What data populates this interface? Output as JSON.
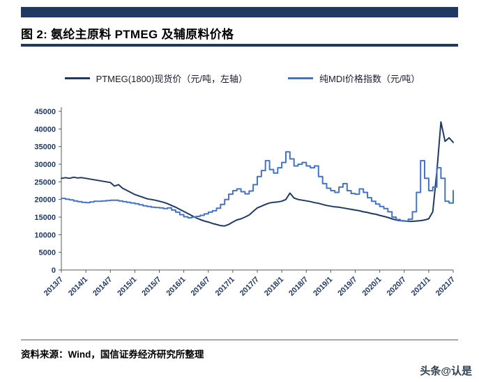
{
  "header": {
    "title": "图 2:  氨纶主原料 PTMEG 及辅原料价格"
  },
  "legend": [
    {
      "label": "PTMEG(1800)现货价（元/吨，左轴）",
      "color": "#1f3864"
    },
    {
      "label": "纯MDI价格指数（元/吨）",
      "color": "#4472c4"
    }
  ],
  "footer": {
    "source": "资料来源：Wind，国信证券经济研究所整理",
    "watermark": "头条@认是"
  },
  "chart_data": {
    "type": "line",
    "title": "氨纶主原料 PTMEG 及辅原料价格",
    "xlabel": "",
    "ylabel": "元/吨",
    "ylim": [
      0,
      45000
    ],
    "ytick_step": 5000,
    "grid": false,
    "legend_position": "top",
    "x_tick_interval": 6,
    "x_tick_labels": [
      "2013/7",
      "2014/1",
      "2014/7",
      "2015/1",
      "2015/7",
      "2016/1",
      "2016/7",
      "2017/1",
      "2017/7",
      "2018/1",
      "2018/7",
      "2019/1",
      "2019/7",
      "2020/1",
      "2020/7",
      "2021/1",
      "2021/7"
    ],
    "series": [
      {
        "name": "PTMEG(1800)现货价（元/吨，左轴）",
        "color": "#1f3864",
        "step": false,
        "values": [
          26000,
          26200,
          26000,
          26300,
          26100,
          26200,
          26000,
          25800,
          25600,
          25400,
          25200,
          25000,
          24800,
          23800,
          24200,
          23200,
          22600,
          22000,
          21400,
          21000,
          20600,
          20200,
          20000,
          19800,
          19500,
          19200,
          18800,
          18300,
          17800,
          17200,
          16600,
          16000,
          15400,
          14800,
          14300,
          13900,
          13600,
          13200,
          12900,
          12600,
          12500,
          12900,
          13600,
          14200,
          14500,
          15000,
          15600,
          16600,
          17600,
          18100,
          18600,
          19000,
          19200,
          19300,
          19500,
          20000,
          21800,
          20400,
          20000,
          19800,
          19600,
          19400,
          19100,
          18900,
          18600,
          18300,
          18100,
          17900,
          17800,
          17600,
          17400,
          17200,
          17000,
          16800,
          16500,
          16300,
          16000,
          15800,
          15500,
          15200,
          14900,
          14500,
          14200,
          14000,
          13900,
          13800,
          13800,
          13900,
          14000,
          14200,
          14500,
          16500,
          28000,
          42000,
          36500,
          37500,
          36200
        ]
      },
      {
        "name": "纯MDI价格指数（元/吨）",
        "color": "#4472c4",
        "step": true,
        "values": [
          20300,
          20100,
          19900,
          19600,
          19400,
          19200,
          19100,
          19300,
          19500,
          19500,
          19600,
          19700,
          19800,
          19800,
          19600,
          19400,
          19200,
          19000,
          18800,
          18500,
          18200,
          18000,
          17800,
          17700,
          17600,
          17400,
          17600,
          17000,
          16400,
          15700,
          15100,
          14800,
          15000,
          15200,
          15500,
          15900,
          16400,
          16800,
          17500,
          18600,
          20000,
          21500,
          22500,
          23000,
          22200,
          21600,
          22400,
          24200,
          26500,
          28200,
          31000,
          28500,
          27500,
          29000,
          30500,
          33500,
          31500,
          29500,
          30000,
          30500,
          29500,
          29000,
          29500,
          26500,
          24500,
          23200,
          22500,
          22000,
          23500,
          24500,
          22500,
          21700,
          21500,
          23000,
          22000,
          20500,
          19500,
          18700,
          18000,
          17400,
          16500,
          15000,
          14300,
          14000,
          13900,
          14400,
          16500,
          22000,
          31000,
          26000,
          22500,
          23500,
          29000,
          26000,
          19500,
          19000,
          22500
        ]
      }
    ]
  }
}
